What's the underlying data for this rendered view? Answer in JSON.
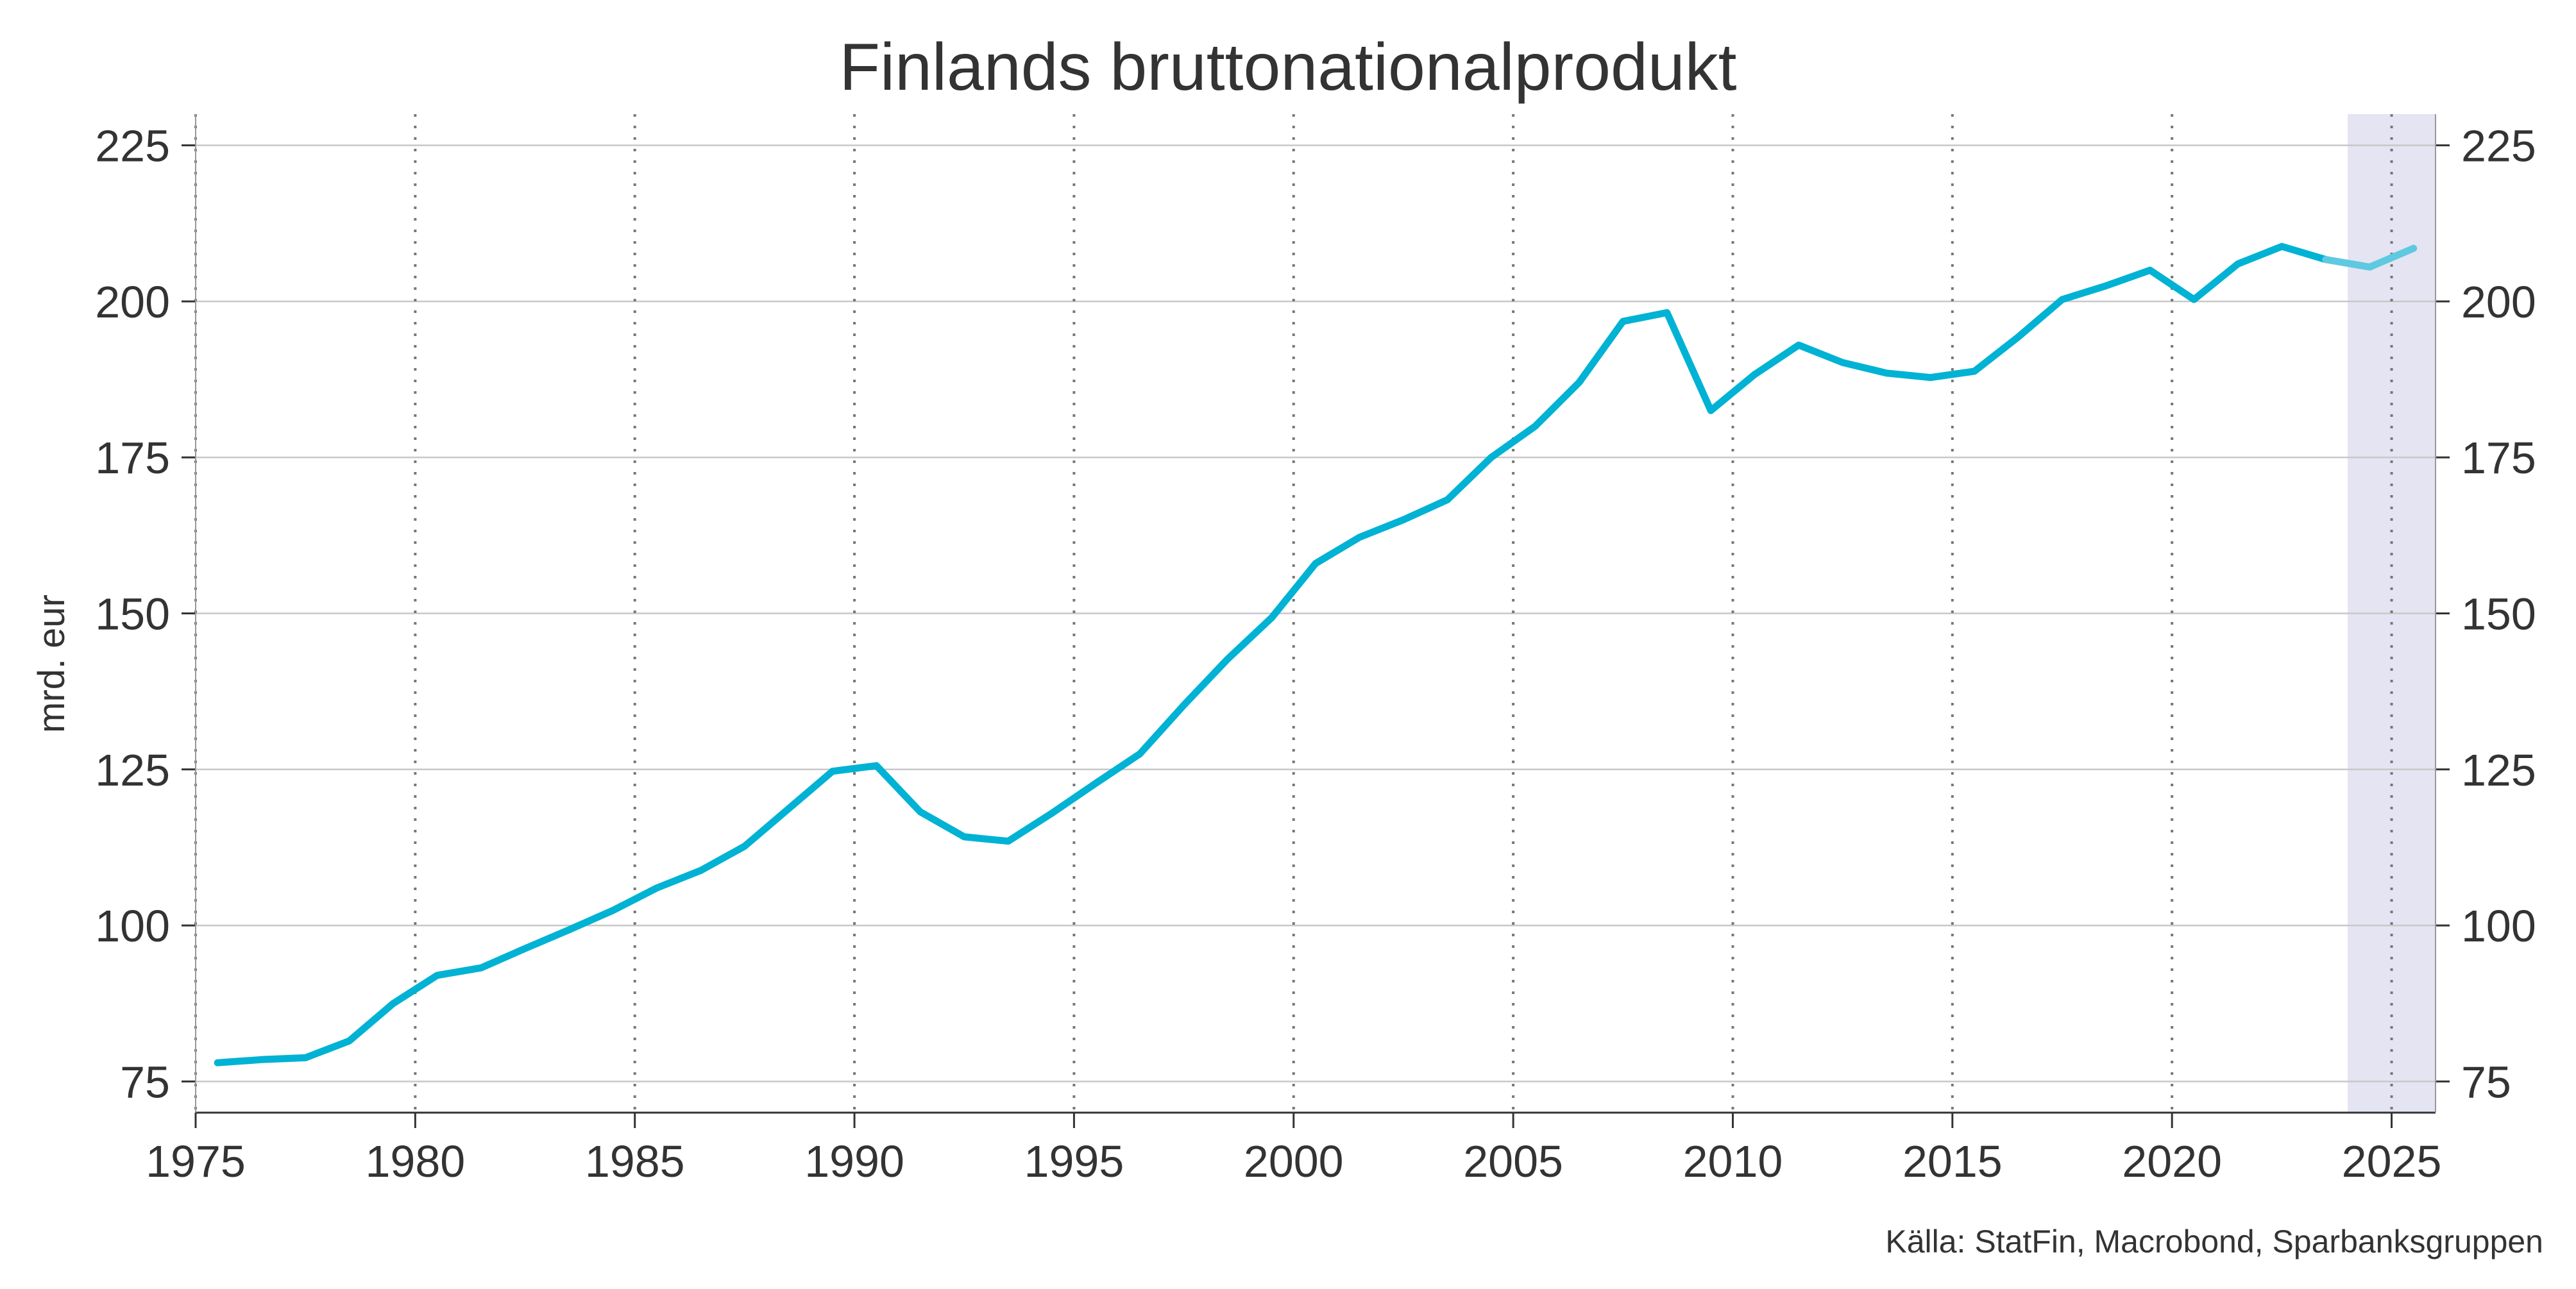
{
  "chart_data": {
    "type": "line",
    "title": "Finlands bruttonationalprodukt",
    "ylabel": "mrd. eur",
    "source": "Källa: StatFin, Macrobond, Sparbanksgruppen",
    "xlim": [
      1975,
      2026
    ],
    "ylim": [
      70,
      230
    ],
    "x_ticks": [
      1975,
      1980,
      1985,
      1990,
      1995,
      2000,
      2005,
      2010,
      2015,
      2020,
      2025
    ],
    "y_ticks": [
      75,
      100,
      125,
      150,
      175,
      200,
      225
    ],
    "forecast_shade": {
      "from": 2024,
      "to": 2026
    },
    "grid": {
      "horizontal": true,
      "vertical": "dotted"
    },
    "colors": {
      "line": "#00b2d3",
      "forecast_line": "#5ec9e0",
      "shade": "#e4e4f2",
      "grid": "#c8c8c8"
    },
    "series": [
      {
        "x": [
          1975.5,
          1976.5,
          1977.5,
          1978.5,
          1979.5,
          1980.5,
          1981.5,
          1982.5,
          1983.5,
          1984.5,
          1985.5,
          1986.5,
          1987.5,
          1988.5,
          1989.5,
          1990.5,
          1991.5,
          1992.5,
          1993.5,
          1994.5,
          1995.5,
          1996.5,
          1997.5,
          1998.5,
          1999.5,
          2000.5,
          2001.5,
          2002.5,
          2003.5,
          2004.5,
          2005.5,
          2006.5,
          2007.5,
          2008.5,
          2009.5,
          2010.5,
          2011.5,
          2012.5,
          2013.5,
          2014.5,
          2015.5,
          2016.5,
          2017.5,
          2018.5,
          2019.5,
          2020.5,
          2021.5,
          2022.5,
          2023.5
        ],
        "values": [
          78.0,
          78.5,
          78.8,
          81.5,
          87.5,
          92.0,
          93.2,
          96.3,
          99.3,
          102.4,
          106.0,
          108.8,
          112.7,
          118.7,
          124.7,
          125.6,
          118.2,
          114.2,
          113.5,
          118.0,
          122.8,
          127.5,
          135.3,
          142.7,
          149.3,
          158.0,
          162.2,
          165.0,
          168.2,
          175.0,
          180.0,
          187.0,
          196.8,
          198.2,
          182.5,
          188.3,
          193.0,
          190.2,
          188.5,
          187.8,
          188.8,
          194.3,
          200.3,
          202.5,
          205.0,
          200.3,
          206.0,
          208.8,
          206.7
        ]
      },
      {
        "x": [
          2023.5,
          2024.5,
          2025.5
        ],
        "values": [
          206.7,
          205.5,
          208.5
        ]
      }
    ]
  }
}
